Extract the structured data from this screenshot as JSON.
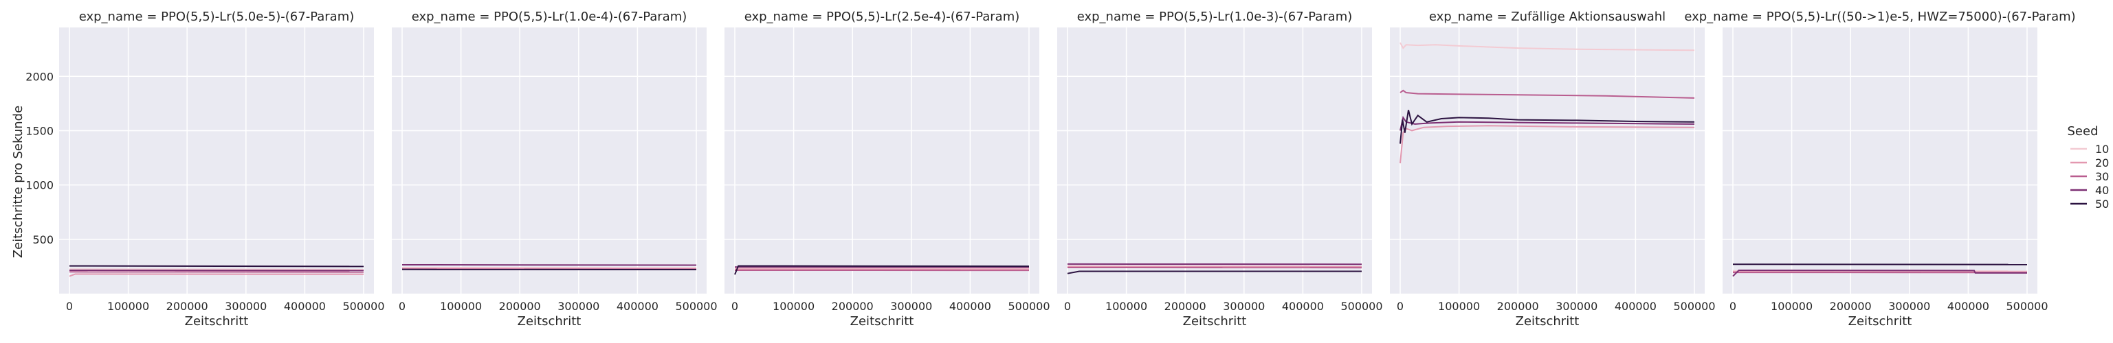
{
  "figure": {
    "ylabel": "Zeitschritte pro Sekunde",
    "xlabel": "Zeitschritt"
  },
  "legend": {
    "title": "Seed",
    "entries": [
      {
        "label": "10",
        "color": "#f3cbd3"
      },
      {
        "label": "20",
        "color": "#e398b0"
      },
      {
        "label": "30",
        "color": "#b95d8f"
      },
      {
        "label": "40",
        "color": "#7c2f73"
      },
      {
        "label": "50",
        "color": "#2b1240"
      }
    ]
  },
  "chart_data": [
    {
      "type": "line",
      "title": "exp_name = PPO(5,5)-Lr(5.0e-5)-(67-Param)",
      "xlim": [
        0,
        500000
      ],
      "ylim": [
        0,
        2450
      ],
      "xticks": [
        "0",
        "100000",
        "200000",
        "300000",
        "400000",
        "500000"
      ],
      "yticks": [
        "500",
        "1000",
        "1500",
        "2000"
      ],
      "series": [
        {
          "seed": "10",
          "points": [
            [
              0,
              225
            ],
            [
              500000,
              222
            ]
          ]
        },
        {
          "seed": "20",
          "points": [
            [
              0,
              160
            ],
            [
              10000,
              180
            ],
            [
              500000,
              178
            ]
          ]
        },
        {
          "seed": "30",
          "points": [
            [
              0,
              200
            ],
            [
              500000,
              198
            ]
          ]
        },
        {
          "seed": "40",
          "points": [
            [
              0,
              215
            ],
            [
              500000,
              212
            ]
          ]
        },
        {
          "seed": "50",
          "points": [
            [
              0,
              255
            ],
            [
              500000,
              250
            ]
          ]
        }
      ]
    },
    {
      "type": "line",
      "title": "exp_name = PPO(5,5)-Lr(1.0e-4)-(67-Param)",
      "xlim": [
        0,
        500000
      ],
      "ylim": [
        0,
        2450
      ],
      "xticks": [
        "0",
        "100000",
        "200000",
        "300000",
        "400000",
        "500000"
      ],
      "yticks": [
        "500",
        "1000",
        "1500",
        "2000"
      ],
      "series": [
        {
          "seed": "10",
          "points": [
            [
              0,
              240
            ],
            [
              500000,
              238
            ]
          ]
        },
        {
          "seed": "20",
          "points": [
            [
              0,
              230
            ],
            [
              500000,
              229
            ]
          ]
        },
        {
          "seed": "30",
          "points": [
            [
              0,
              225
            ],
            [
              500000,
              224
            ]
          ]
        },
        {
          "seed": "40",
          "points": [
            [
              0,
              265
            ],
            [
              500000,
              262
            ]
          ]
        },
        {
          "seed": "50",
          "points": [
            [
              0,
              222
            ],
            [
              500000,
              221
            ]
          ]
        }
      ]
    },
    {
      "type": "line",
      "title": "exp_name = PPO(5,5)-Lr(2.5e-4)-(67-Param)",
      "xlim": [
        0,
        500000
      ],
      "ylim": [
        0,
        2450
      ],
      "xticks": [
        "0",
        "100000",
        "200000",
        "300000",
        "400000",
        "500000"
      ],
      "yticks": [
        "500",
        "1000",
        "1500",
        "2000"
      ],
      "series": [
        {
          "seed": "10",
          "points": [
            [
              0,
              235
            ],
            [
              500000,
              233
            ]
          ]
        },
        {
          "seed": "20",
          "points": [
            [
              0,
              225
            ],
            [
              500000,
              224
            ]
          ]
        },
        {
          "seed": "30",
          "points": [
            [
              0,
              215
            ],
            [
              500000,
              214
            ]
          ]
        },
        {
          "seed": "40",
          "points": [
            [
              0,
              245
            ],
            [
              500000,
              243
            ]
          ]
        },
        {
          "seed": "50",
          "points": [
            [
              0,
              175
            ],
            [
              6000,
              255
            ],
            [
              500000,
              252
            ]
          ]
        }
      ]
    },
    {
      "type": "line",
      "title": "exp_name = PPO(5,5)-Lr(1.0e-3)-(67-Param)",
      "xlim": [
        0,
        500000
      ],
      "ylim": [
        0,
        2450
      ],
      "xticks": [
        "0",
        "100000",
        "200000",
        "300000",
        "400000",
        "500000"
      ],
      "yticks": [
        "500",
        "1000",
        "1500",
        "2000"
      ],
      "series": [
        {
          "seed": "10",
          "points": [
            [
              0,
              270
            ],
            [
              500000,
              268
            ]
          ]
        },
        {
          "seed": "20",
          "points": [
            [
              0,
              250
            ],
            [
              500000,
              249
            ]
          ]
        },
        {
          "seed": "30",
          "points": [
            [
              0,
              240
            ],
            [
              500000,
              239
            ]
          ]
        },
        {
          "seed": "40",
          "points": [
            [
              0,
              272
            ],
            [
              500000,
              270
            ]
          ]
        },
        {
          "seed": "50",
          "points": [
            [
              0,
              185
            ],
            [
              20000,
              205
            ],
            [
              500000,
              205
            ]
          ]
        }
      ]
    },
    {
      "type": "line",
      "title": "exp_name = Zufällige Aktionsauswahl",
      "xlim": [
        0,
        500000
      ],
      "ylim": [
        0,
        2450
      ],
      "xticks": [
        "0",
        "100000",
        "200000",
        "300000",
        "400000",
        "500000"
      ],
      "yticks": [
        "500",
        "1000",
        "1500",
        "2000"
      ],
      "series": [
        {
          "seed": "10",
          "points": [
            [
              0,
              2310
            ],
            [
              5000,
              2260
            ],
            [
              10000,
              2290
            ],
            [
              30000,
              2285
            ],
            [
              60000,
              2290
            ],
            [
              100000,
              2280
            ],
            [
              200000,
              2260
            ],
            [
              300000,
              2250
            ],
            [
              400000,
              2245
            ],
            [
              500000,
              2240
            ]
          ]
        },
        {
          "seed": "20",
          "points": [
            [
              0,
              1200
            ],
            [
              5000,
              1480
            ],
            [
              10000,
              1520
            ],
            [
              20000,
              1500
            ],
            [
              40000,
              1530
            ],
            [
              80000,
              1540
            ],
            [
              150000,
              1545
            ],
            [
              300000,
              1535
            ],
            [
              500000,
              1530
            ]
          ]
        },
        {
          "seed": "30",
          "points": [
            [
              0,
              1850
            ],
            [
              5000,
              1870
            ],
            [
              10000,
              1850
            ],
            [
              30000,
              1840
            ],
            [
              100000,
              1835
            ],
            [
              200000,
              1830
            ],
            [
              350000,
              1820
            ],
            [
              500000,
              1800
            ]
          ]
        },
        {
          "seed": "40",
          "points": [
            [
              0,
              1500
            ],
            [
              5000,
              1620
            ],
            [
              10000,
              1580
            ],
            [
              25000,
              1560
            ],
            [
              50000,
              1570
            ],
            [
              100000,
              1580
            ],
            [
              200000,
              1575
            ],
            [
              300000,
              1570
            ],
            [
              500000,
              1560
            ]
          ]
        },
        {
          "seed": "50",
          "points": [
            [
              0,
              1380
            ],
            [
              4000,
              1600
            ],
            [
              8000,
              1480
            ],
            [
              14000,
              1690
            ],
            [
              20000,
              1560
            ],
            [
              30000,
              1640
            ],
            [
              45000,
              1580
            ],
            [
              70000,
              1610
            ],
            [
              100000,
              1620
            ],
            [
              150000,
              1615
            ],
            [
              200000,
              1600
            ],
            [
              300000,
              1595
            ],
            [
              400000,
              1585
            ],
            [
              500000,
              1580
            ]
          ]
        }
      ]
    },
    {
      "type": "line",
      "title": "exp_name = PPO(5,5)-Lr((50->1)e-5, HWZ=75000)-(67-Param)",
      "xlim": [
        0,
        500000
      ],
      "ylim": [
        0,
        2450
      ],
      "xticks": [
        "0",
        "100000",
        "200000",
        "300000",
        "400000",
        "500000"
      ],
      "yticks": [
        "500",
        "1000",
        "1500",
        "2000"
      ],
      "series": [
        {
          "seed": "10",
          "points": [
            [
              0,
              210
            ],
            [
              500000,
              208
            ]
          ]
        },
        {
          "seed": "20",
          "points": [
            [
              0,
              200
            ],
            [
              500000,
              199
            ]
          ]
        },
        {
          "seed": "30",
          "points": [
            [
              0,
              195
            ],
            [
              500000,
              194
            ]
          ]
        },
        {
          "seed": "40",
          "points": [
            [
              0,
              160
            ],
            [
              10000,
              215
            ],
            [
              410000,
              212
            ],
            [
              412000,
              190
            ],
            [
              500000,
              190
            ]
          ]
        },
        {
          "seed": "50",
          "points": [
            [
              0,
              270
            ],
            [
              500000,
              268
            ]
          ]
        }
      ]
    }
  ]
}
